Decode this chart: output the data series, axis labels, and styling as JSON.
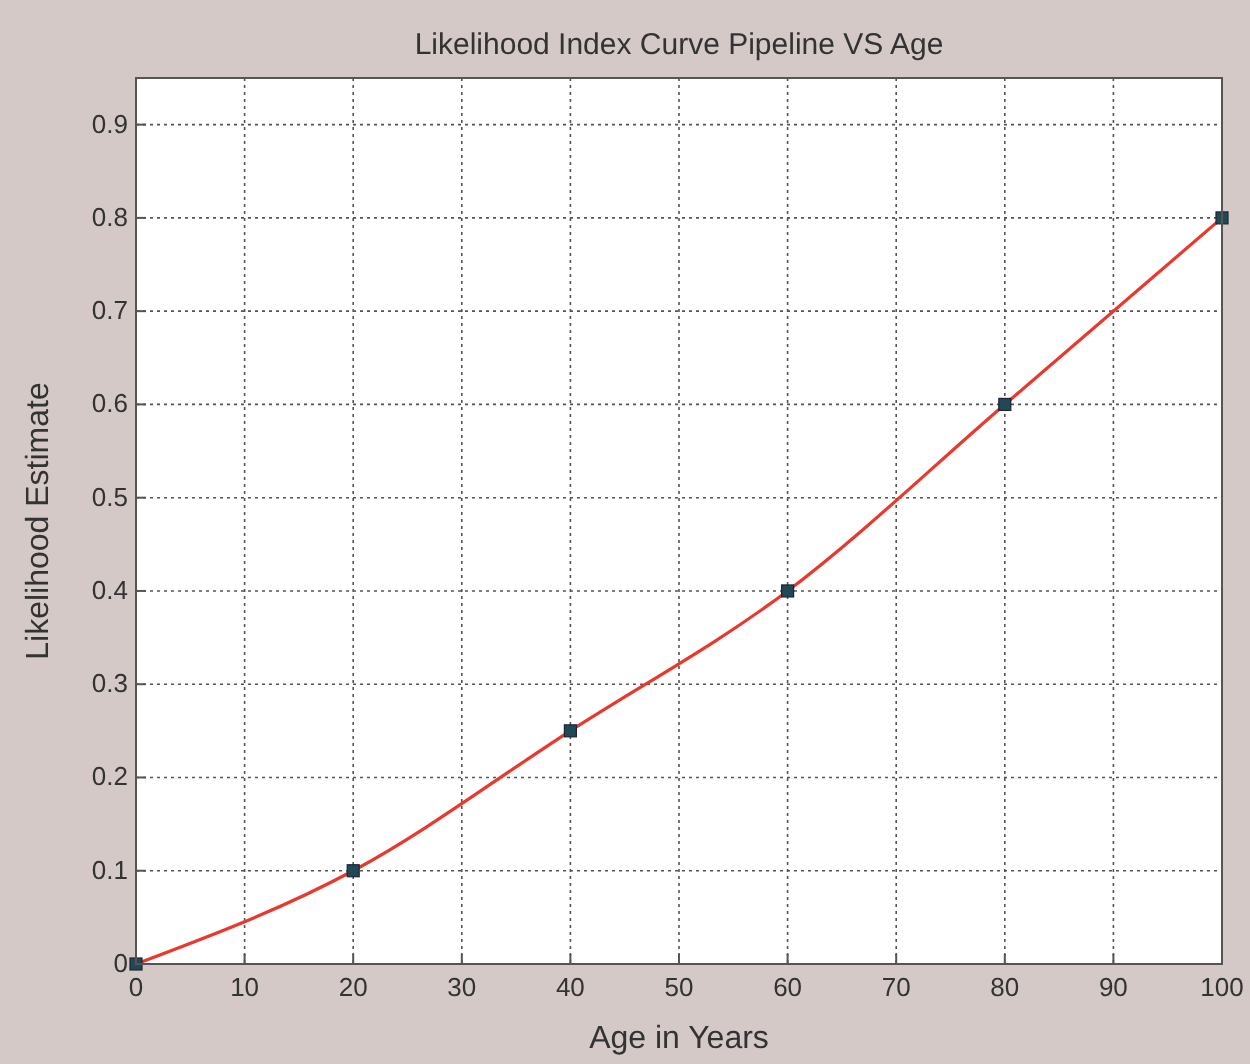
{
  "chart_data": {
    "type": "line",
    "title": "Likelihood Index Curve  Pipeline VS Age",
    "xlabel": "Age in Years",
    "ylabel": "Likelihood Estimate",
    "x": [
      0,
      20,
      40,
      60,
      80,
      100
    ],
    "series": [
      {
        "color": "#e8392e",
        "values": [
          0,
          0.1,
          0.25,
          0.4,
          0.6,
          0.8
        ],
        "marker": "none"
      },
      {
        "type": "scatter",
        "color": "#1f4a55",
        "values": [
          0,
          0.1,
          0.25,
          0.4,
          0.6,
          0.8
        ],
        "marker": "square"
      }
    ],
    "xlim": [
      0,
      100
    ],
    "xticks": [
      0,
      10,
      20,
      30,
      40,
      50,
      60,
      70,
      80,
      90,
      100
    ],
    "ylim": [
      0,
      0.95
    ],
    "yticks": [
      0,
      0.1,
      0.2,
      0.3,
      0.4,
      0.5,
      0.6,
      0.7,
      0.8,
      0.9
    ],
    "grid": true
  }
}
